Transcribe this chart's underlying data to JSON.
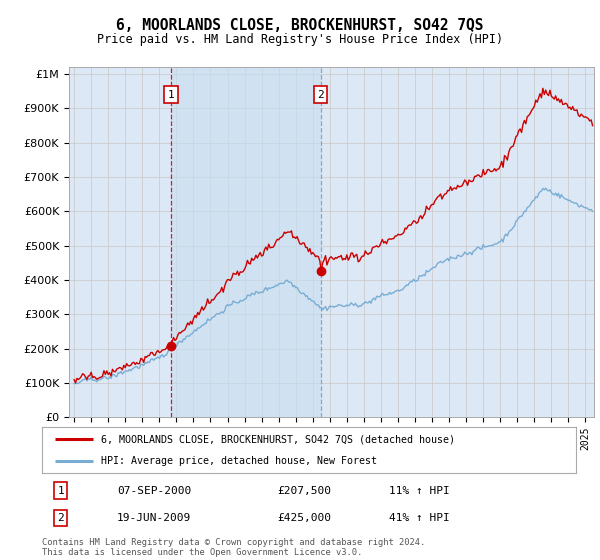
{
  "title": "6, MOORLANDS CLOSE, BROCKENHURST, SO42 7QS",
  "subtitle": "Price paid vs. HM Land Registry's House Price Index (HPI)",
  "ytick_values": [
    0,
    100000,
    200000,
    300000,
    400000,
    500000,
    600000,
    700000,
    800000,
    900000,
    1000000
  ],
  "ylim": [
    0,
    1020000
  ],
  "xlim_start": 1994.7,
  "xlim_end": 2025.5,
  "sale1_x": 2000.69,
  "sale1_y": 207500,
  "sale2_x": 2009.47,
  "sale2_y": 425000,
  "sale1_date": "07-SEP-2000",
  "sale1_price": "£207,500",
  "sale1_hpi": "11% ↑ HPI",
  "sale2_date": "19-JUN-2009",
  "sale2_price": "£425,000",
  "sale2_hpi": "41% ↑ HPI",
  "red_line_color": "#cc0000",
  "blue_line_color": "#7aadd4",
  "grid_color": "#cccccc",
  "bg_color": "#dce8f5",
  "shade_color": "#c8dff0",
  "legend_label_red": "6, MOORLANDS CLOSE, BROCKENHURST, SO42 7QS (detached house)",
  "legend_label_blue": "HPI: Average price, detached house, New Forest",
  "footnote": "Contains HM Land Registry data © Crown copyright and database right 2024.\nThis data is licensed under the Open Government Licence v3.0."
}
